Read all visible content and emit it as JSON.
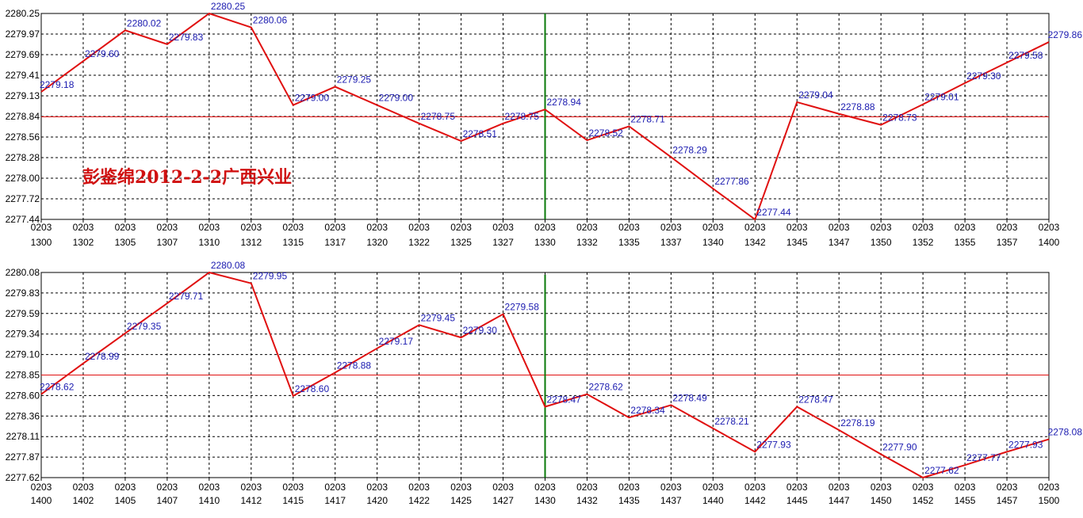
{
  "colors": {
    "series": "#e01010",
    "reference": "#e01010",
    "divider": "#0a7a0a",
    "label": "#1b1bb0"
  },
  "annotation": "彭鉴绵2012-2-2广西兴业",
  "chart_data": [
    {
      "type": "line",
      "x_top": [
        "0203",
        "0203",
        "0203",
        "0203",
        "0203",
        "0203",
        "0203",
        "0203",
        "0203",
        "0203",
        "0203",
        "0203",
        "0203",
        "0203",
        "0203",
        "0203",
        "0203",
        "0203",
        "0203",
        "0203",
        "0203",
        "0203",
        "0203",
        "0203",
        "0203"
      ],
      "x": [
        "1300",
        "1302",
        "1305",
        "1307",
        "1310",
        "1312",
        "1315",
        "1317",
        "1320",
        "1322",
        "1325",
        "1327",
        "1330",
        "1332",
        "1335",
        "1337",
        "1340",
        "1342",
        "1345",
        "1347",
        "1350",
        "1352",
        "1355",
        "1357",
        "1400"
      ],
      "y_ticks": [
        "2280.25",
        "2279.97",
        "2279.69",
        "2279.41",
        "2279.13",
        "2278.84",
        "2278.56",
        "2278.28",
        "2278.00",
        "2277.72",
        "2277.44"
      ],
      "ylim": [
        2277.44,
        2280.25
      ],
      "reference": 2278.84,
      "divider_index": 12,
      "values": [
        2279.18,
        2279.6,
        2280.02,
        2279.83,
        2280.25,
        2280.06,
        2279.0,
        2279.25,
        2279.0,
        2278.75,
        2278.51,
        2278.75,
        2278.94,
        2278.52,
        2278.71,
        2278.29,
        2277.86,
        2277.44,
        2279.04,
        2278.88,
        2278.73,
        2279.01,
        2279.3,
        2279.58,
        2279.86
      ],
      "labels": [
        "2279.18",
        "2279.60",
        "2280.02",
        "2279.83",
        "2280.25",
        "2280.06",
        "2279.00",
        "2279.25",
        "2279.00",
        "2278.75",
        "2278.51",
        "2278.75",
        "2278.94",
        "2278.52",
        "2278.71",
        "2278.29",
        "2277.86",
        "2277.44",
        "2279.04",
        "2278.88",
        "2278.73",
        "2279.01",
        "2279.30",
        "2279.58",
        "2279.86"
      ]
    },
    {
      "type": "line",
      "x_top": [
        "0203",
        "0203",
        "0203",
        "0203",
        "0203",
        "0203",
        "0203",
        "0203",
        "0203",
        "0203",
        "0203",
        "0203",
        "0203",
        "0203",
        "0203",
        "0203",
        "0203",
        "0203",
        "0203",
        "0203",
        "0203",
        "0203",
        "0203",
        "0203",
        "0203"
      ],
      "x": [
        "1400",
        "1402",
        "1405",
        "1407",
        "1410",
        "1412",
        "1415",
        "1417",
        "1420",
        "1422",
        "1425",
        "1427",
        "1430",
        "1432",
        "1435",
        "1437",
        "1440",
        "1442",
        "1445",
        "1447",
        "1450",
        "1452",
        "1455",
        "1457",
        "1500"
      ],
      "y_ticks": [
        "2280.08",
        "2279.83",
        "2279.59",
        "2279.34",
        "2279.10",
        "2278.85",
        "2278.60",
        "2278.36",
        "2278.11",
        "2277.87",
        "2277.62"
      ],
      "ylim": [
        2277.62,
        2280.08
      ],
      "reference": 2278.85,
      "divider_index": 12,
      "values": [
        2278.62,
        2278.99,
        2279.35,
        2279.71,
        2280.08,
        2279.95,
        2278.6,
        2278.88,
        2279.17,
        2279.45,
        2279.3,
        2279.58,
        2278.47,
        2278.62,
        2278.34,
        2278.49,
        2278.21,
        2277.93,
        2278.47,
        2278.19,
        2277.9,
        2277.62,
        2277.77,
        2277.93,
        2278.08
      ],
      "labels": [
        "2278.62",
        "2278.99",
        "2279.35",
        "2279.71",
        "2280.08",
        "2279.95",
        "2278.60",
        "2278.88",
        "2279.17",
        "2279.45",
        "2279.30",
        "2279.58",
        "2278.47",
        "2278.62",
        "2278.34",
        "2278.49",
        "2278.21",
        "2277.93",
        "2278.47",
        "2278.19",
        "2277.90",
        "2277.62",
        "2277.77",
        "2277.93",
        "2278.08"
      ]
    }
  ]
}
